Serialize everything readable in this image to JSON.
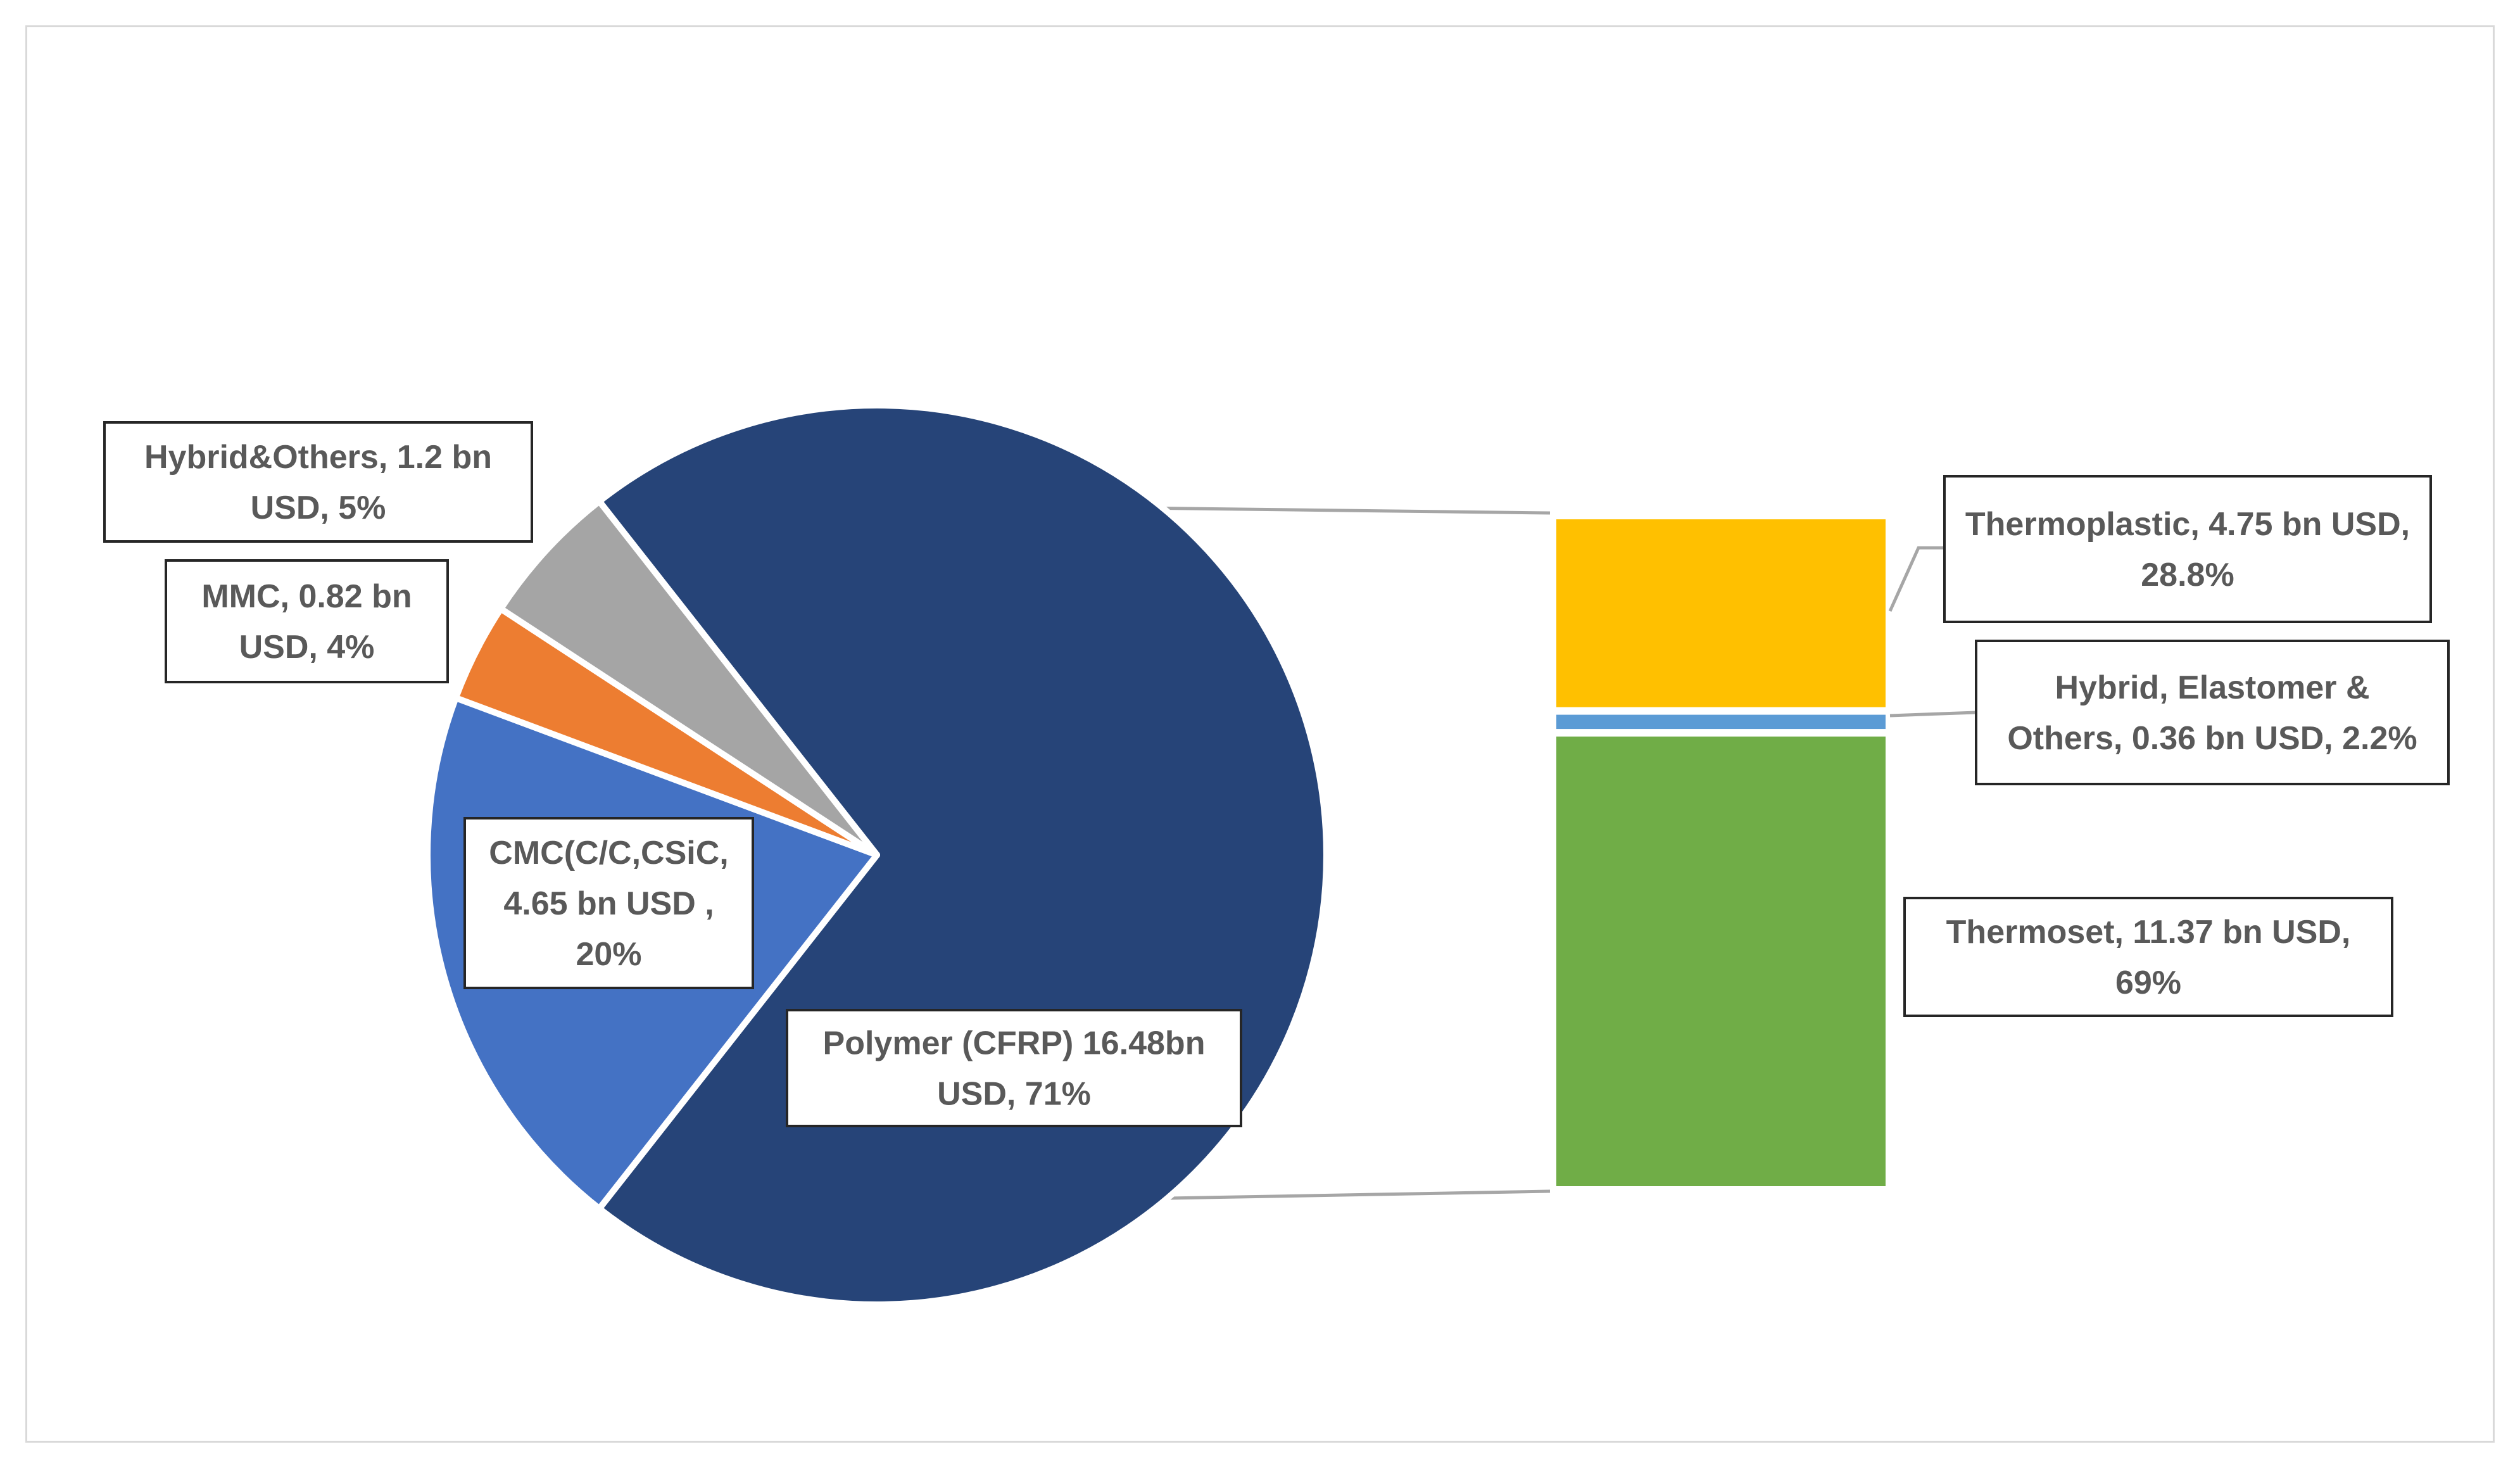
{
  "chart_data": {
    "type": "pie",
    "subtype": "bar-of-pie",
    "unit": "bn USD",
    "pie": {
      "slices": [
        {
          "name": "Polymer (CFRP)",
          "value": 16.48,
          "percent": 71,
          "color": "#264478",
          "label_lines": [
            "Polymer (CFRP) 16.48bn",
            "USD, 71%"
          ]
        },
        {
          "name": "CMC(C/C,CSiC,",
          "value": 4.65,
          "percent": 20,
          "color": "#4472c4",
          "label_lines": [
            "CMC(C/C,CSiC,",
            "4.65 bn USD ,",
            "20%"
          ]
        },
        {
          "name": "MMC",
          "value": 0.82,
          "percent": 4,
          "color": "#ed7d31",
          "label_lines": [
            "MMC, 0.82 bn",
            "USD, 4%"
          ]
        },
        {
          "name": "Hybrid&Others",
          "value": 1.2,
          "percent": 5,
          "color": "#a5a5a5",
          "label_lines": [
            "Hybrid&Others, 1.2 bn",
            "USD, 5%"
          ]
        }
      ]
    },
    "bar": {
      "parent_slice": "Polymer (CFRP)",
      "segments": [
        {
          "name": "Thermoset",
          "value": 11.37,
          "percent": 69,
          "color": "#70ad47",
          "label_lines": [
            "Thermoset, 11.37 bn USD,",
            "69%"
          ]
        },
        {
          "name": "Hybrid, Elastomer & Others",
          "value": 0.36,
          "percent": 2.2,
          "color": "#5b9bd5",
          "label_lines": [
            "Hybrid, Elastomer &",
            "Others, 0.36 bn USD, 2.2%"
          ]
        },
        {
          "name": "Thermoplastic",
          "value": 4.75,
          "percent": 28.8,
          "color": "#ffc000",
          "label_lines": [
            "Thermoplastic, 4.75 bn USD,",
            "28.8%"
          ]
        }
      ]
    }
  }
}
